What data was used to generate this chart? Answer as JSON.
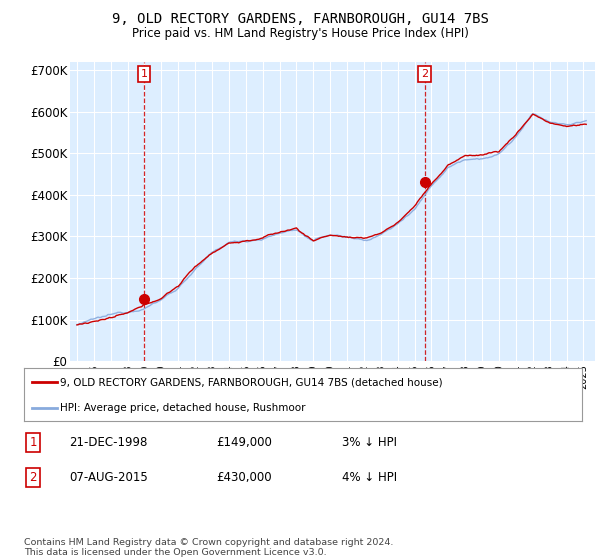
{
  "title_line1": "9, OLD RECTORY GARDENS, FARNBOROUGH, GU14 7BS",
  "title_line2": "Price paid vs. HM Land Registry's House Price Index (HPI)",
  "ylabel_ticks": [
    "£0",
    "£100K",
    "£200K",
    "£300K",
    "£400K",
    "£500K",
    "£600K",
    "£700K"
  ],
  "ylim": [
    0,
    720000
  ],
  "transaction1_date": 1998.97,
  "transaction1_price": 149000,
  "transaction1_label": "1",
  "transaction2_date": 2015.59,
  "transaction2_price": 430000,
  "transaction2_label": "2",
  "legend_line1": "9, OLD RECTORY GARDENS, FARNBOROUGH, GU14 7BS (detached house)",
  "legend_line2": "HPI: Average price, detached house, Rushmoor",
  "table_row1": [
    "1",
    "21-DEC-1998",
    "£149,000",
    "3% ↓ HPI"
  ],
  "table_row2": [
    "2",
    "07-AUG-2015",
    "£430,000",
    "4% ↓ HPI"
  ],
  "footer": "Contains HM Land Registry data © Crown copyright and database right 2024.\nThis data is licensed under the Open Government Licence v3.0.",
  "color_red": "#cc0000",
  "color_blue": "#88aadd",
  "color_grid": "#cccccc",
  "color_bg": "#ffffff",
  "color_plotbg": "#ddeeff"
}
